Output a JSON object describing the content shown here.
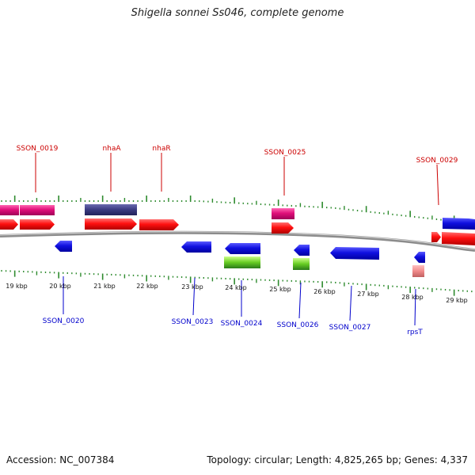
{
  "title": "Shigella sonnei Ss046, complete genome",
  "footer": {
    "accession": "Accession: NC_007384",
    "summary": "Topology: circular; Length: 4,825,265 bp; Genes: 4,337"
  },
  "colors": {
    "backbone": "#8c8c8c",
    "tick": "#2e8b2e",
    "cds": "#ff1010",
    "gene_forward": "#e0107a",
    "gene_reverse": "#1010e0",
    "rna_green": "#66cc22",
    "navy": "#3a3a80",
    "rps_pink": "#f08a8a",
    "label_top": "#cc0000",
    "label_bottom": "#0000cc"
  },
  "scale_labels": [
    "19 kbp",
    "20 kbp",
    "21 kbp",
    "22 kbp",
    "23 kbp",
    "24 kbp",
    "25 kbp",
    "26 kbp",
    "27 kbp",
    "28 kbp",
    "29 kbp"
  ],
  "top_labels": [
    "SSON_0019",
    "nhaA",
    "nhaR",
    "SSON_0025",
    "SSON_0029"
  ],
  "bottom_labels": [
    "SSON_0020",
    "SSON_0023",
    "SSON_0024",
    "SSON_0026",
    "SSON_0027",
    "rpsT"
  ]
}
